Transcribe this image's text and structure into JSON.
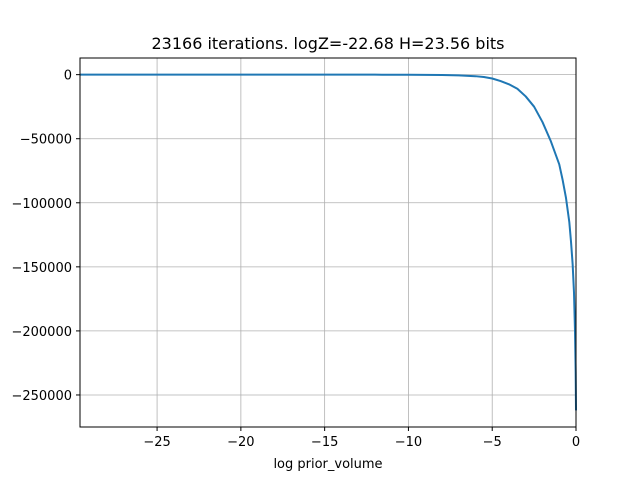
{
  "chart_data": {
    "type": "line",
    "title": "23166 iterations. logZ=-22.68 H=23.56 bits",
    "xlabel": "log prior_volume",
    "ylabel": "",
    "xlim": [
      -29.6,
      0.0
    ],
    "ylim": [
      -275000,
      13000
    ],
    "grid": true,
    "xticks": [
      -25,
      -20,
      -15,
      -10,
      -5,
      0
    ],
    "xtick_labels": [
      "−25",
      "−20",
      "−15",
      "−10",
      "−5",
      "0"
    ],
    "yticks": [
      0,
      -50000,
      -100000,
      -150000,
      -200000,
      -250000
    ],
    "ytick_labels": [
      "0",
      "−50000",
      "−100000",
      "−150000",
      "−200000",
      "−250000"
    ],
    "series": [
      {
        "color": "#1f77b4",
        "x": [
          -29.6,
          -25,
          -20,
          -15,
          -12,
          -10,
          -9,
          -8,
          -7,
          -6,
          -5.5,
          -5,
          -4.5,
          -4,
          -3.5,
          -3,
          -2.5,
          -2,
          -1.5,
          -1,
          -0.8,
          -0.6,
          -0.4,
          -0.3,
          -0.2,
          -0.12,
          -0.06,
          -0.02,
          0.0
        ],
        "y": [
          0,
          0,
          0,
          0,
          -20,
          -80,
          -150,
          -300,
          -600,
          -1200,
          -1800,
          -3000,
          -5000,
          -7500,
          -11000,
          -17000,
          -25000,
          -37000,
          -52000,
          -70000,
          -82000,
          -96000,
          -115000,
          -130000,
          -148000,
          -170000,
          -200000,
          -232000,
          -262000
        ]
      }
    ]
  }
}
